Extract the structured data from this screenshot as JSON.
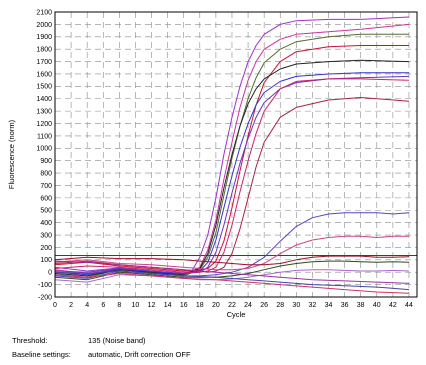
{
  "info": {
    "threshold_label": "Threshold:",
    "threshold_value": "135 (Noise band)",
    "baseline_label": "Baseline settings:",
    "baseline_value": "automatic, Drift correction OFF"
  },
  "chart_data": {
    "type": "line",
    "title": "",
    "xlabel": "Cycle",
    "ylabel": "Fluorescence (norm)",
    "xlim": [
      0,
      45
    ],
    "ylim": [
      -200,
      2100
    ],
    "x_ticks": [
      0,
      2,
      4,
      6,
      8,
      10,
      12,
      14,
      16,
      18,
      20,
      22,
      24,
      26,
      28,
      30,
      32,
      34,
      36,
      38,
      40,
      42,
      44
    ],
    "y_ticks": [
      -200,
      -100,
      0,
      100,
      200,
      300,
      400,
      500,
      600,
      700,
      800,
      900,
      1000,
      1100,
      1200,
      1300,
      1400,
      1500,
      1600,
      1700,
      1800,
      1900,
      2000,
      2100
    ],
    "grid": true,
    "legend": "none",
    "threshold": 135,
    "series": [
      {
        "color": "#9933cc",
        "values": [
          [
            0,
            40
          ],
          [
            4,
            10
          ],
          [
            8,
            35
          ],
          [
            12,
            10
          ],
          [
            16,
            -10
          ],
          [
            17,
            10
          ],
          [
            18,
            120
          ],
          [
            19,
            300
          ],
          [
            20,
            600
          ],
          [
            21,
            950
          ],
          [
            22,
            1250
          ],
          [
            23,
            1500
          ],
          [
            24,
            1700
          ],
          [
            25,
            1830
          ],
          [
            26,
            1920
          ],
          [
            28,
            2000
          ],
          [
            30,
            2030
          ],
          [
            34,
            2040
          ],
          [
            38,
            2040
          ],
          [
            44,
            2060
          ]
        ]
      },
      {
        "color": "#cc3399",
        "values": [
          [
            0,
            20
          ],
          [
            4,
            -10
          ],
          [
            8,
            25
          ],
          [
            12,
            5
          ],
          [
            16,
            -20
          ],
          [
            18,
            40
          ],
          [
            19,
            180
          ],
          [
            20,
            420
          ],
          [
            21,
            750
          ],
          [
            22,
            1050
          ],
          [
            23,
            1330
          ],
          [
            24,
            1550
          ],
          [
            25,
            1700
          ],
          [
            26,
            1800
          ],
          [
            28,
            1880
          ],
          [
            30,
            1920
          ],
          [
            34,
            1940
          ],
          [
            38,
            1960
          ],
          [
            44,
            2000
          ]
        ]
      },
      {
        "color": "#556b2f",
        "values": [
          [
            0,
            -20
          ],
          [
            4,
            -40
          ],
          [
            8,
            20
          ],
          [
            12,
            -5
          ],
          [
            16,
            -30
          ],
          [
            18,
            20
          ],
          [
            19,
            120
          ],
          [
            20,
            320
          ],
          [
            21,
            620
          ],
          [
            22,
            920
          ],
          [
            23,
            1180
          ],
          [
            24,
            1400
          ],
          [
            25,
            1570
          ],
          [
            26,
            1690
          ],
          [
            28,
            1800
          ],
          [
            30,
            1860
          ],
          [
            34,
            1900
          ],
          [
            38,
            1920
          ],
          [
            44,
            1920
          ]
        ]
      },
      {
        "color": "#cc1133",
        "values": [
          [
            0,
            60
          ],
          [
            4,
            80
          ],
          [
            8,
            50
          ],
          [
            12,
            30
          ],
          [
            16,
            10
          ],
          [
            18,
            15
          ],
          [
            19,
            30
          ],
          [
            20,
            90
          ],
          [
            21,
            250
          ],
          [
            22,
            520
          ],
          [
            23,
            820
          ],
          [
            24,
            1100
          ],
          [
            25,
            1350
          ],
          [
            26,
            1530
          ],
          [
            28,
            1700
          ],
          [
            30,
            1780
          ],
          [
            34,
            1820
          ],
          [
            38,
            1830
          ],
          [
            44,
            1830
          ]
        ]
      },
      {
        "color": "#222222",
        "values": [
          [
            0,
            -10
          ],
          [
            4,
            -30
          ],
          [
            8,
            20
          ],
          [
            12,
            0
          ],
          [
            16,
            -20
          ],
          [
            18,
            30
          ],
          [
            19,
            150
          ],
          [
            20,
            380
          ],
          [
            21,
            680
          ],
          [
            22,
            950
          ],
          [
            23,
            1180
          ],
          [
            24,
            1360
          ],
          [
            25,
            1480
          ],
          [
            26,
            1560
          ],
          [
            28,
            1640
          ],
          [
            30,
            1680
          ],
          [
            34,
            1700
          ],
          [
            38,
            1710
          ],
          [
            44,
            1700
          ]
        ]
      },
      {
        "color": "#3333cc",
        "values": [
          [
            0,
            0
          ],
          [
            4,
            -20
          ],
          [
            8,
            25
          ],
          [
            12,
            5
          ],
          [
            16,
            -15
          ],
          [
            18,
            10
          ],
          [
            19,
            80
          ],
          [
            20,
            260
          ],
          [
            21,
            520
          ],
          [
            22,
            780
          ],
          [
            23,
            1010
          ],
          [
            24,
            1200
          ],
          [
            25,
            1350
          ],
          [
            26,
            1450
          ],
          [
            28,
            1540
          ],
          [
            30,
            1580
          ],
          [
            34,
            1600
          ],
          [
            38,
            1610
          ],
          [
            44,
            1610
          ]
        ]
      },
      {
        "color": "#6633cc",
        "values": [
          [
            0,
            10
          ],
          [
            4,
            0
          ],
          [
            8,
            30
          ],
          [
            12,
            10
          ],
          [
            16,
            -10
          ],
          [
            18,
            0
          ],
          [
            19,
            40
          ],
          [
            20,
            160
          ],
          [
            21,
            380
          ],
          [
            22,
            640
          ],
          [
            23,
            880
          ],
          [
            24,
            1080
          ],
          [
            25,
            1250
          ],
          [
            26,
            1370
          ],
          [
            28,
            1480
          ],
          [
            30,
            1530
          ],
          [
            34,
            1560
          ],
          [
            38,
            1570
          ],
          [
            44,
            1580
          ]
        ]
      },
      {
        "color": "#cc2266",
        "values": [
          [
            0,
            30
          ],
          [
            4,
            50
          ],
          [
            8,
            40
          ],
          [
            12,
            20
          ],
          [
            16,
            0
          ],
          [
            18,
            0
          ],
          [
            19,
            10
          ],
          [
            20,
            40
          ],
          [
            21,
            160
          ],
          [
            22,
            380
          ],
          [
            23,
            650
          ],
          [
            24,
            900
          ],
          [
            25,
            1120
          ],
          [
            26,
            1300
          ],
          [
            28,
            1480
          ],
          [
            30,
            1540
          ],
          [
            34,
            1560
          ],
          [
            38,
            1560
          ],
          [
            44,
            1550
          ]
        ]
      },
      {
        "color": "#aa2244",
        "values": [
          [
            0,
            70
          ],
          [
            4,
            90
          ],
          [
            8,
            60
          ],
          [
            12,
            40
          ],
          [
            16,
            20
          ],
          [
            18,
            10
          ],
          [
            19,
            0
          ],
          [
            20,
            10
          ],
          [
            21,
            40
          ],
          [
            22,
            150
          ],
          [
            23,
            350
          ],
          [
            24,
            600
          ],
          [
            25,
            850
          ],
          [
            26,
            1050
          ],
          [
            28,
            1250
          ],
          [
            30,
            1330
          ],
          [
            34,
            1390
          ],
          [
            38,
            1410
          ],
          [
            44,
            1380
          ]
        ]
      },
      {
        "color": "#5544cc",
        "values": [
          [
            0,
            -30
          ],
          [
            4,
            -50
          ],
          [
            8,
            10
          ],
          [
            12,
            -10
          ],
          [
            16,
            -30
          ],
          [
            18,
            -30
          ],
          [
            20,
            -20
          ],
          [
            22,
            0
          ],
          [
            24,
            40
          ],
          [
            26,
            120
          ],
          [
            28,
            250
          ],
          [
            30,
            370
          ],
          [
            32,
            440
          ],
          [
            34,
            470
          ],
          [
            36,
            480
          ],
          [
            38,
            480
          ],
          [
            40,
            480
          ],
          [
            42,
            470
          ],
          [
            44,
            480
          ]
        ]
      },
      {
        "color": "#cc4488",
        "values": [
          [
            0,
            80
          ],
          [
            4,
            100
          ],
          [
            8,
            70
          ],
          [
            12,
            60
          ],
          [
            16,
            40
          ],
          [
            18,
            30
          ],
          [
            20,
            20
          ],
          [
            22,
            20
          ],
          [
            24,
            30
          ],
          [
            26,
            70
          ],
          [
            28,
            150
          ],
          [
            30,
            220
          ],
          [
            32,
            260
          ],
          [
            34,
            280
          ],
          [
            36,
            290
          ],
          [
            38,
            290
          ],
          [
            40,
            280
          ],
          [
            42,
            290
          ],
          [
            44,
            290
          ]
        ]
      },
      {
        "color": "#991122",
        "values": [
          [
            0,
            100
          ],
          [
            4,
            120
          ],
          [
            8,
            110
          ],
          [
            12,
            110
          ],
          [
            16,
            100
          ],
          [
            18,
            90
          ],
          [
            20,
            80
          ],
          [
            22,
            70
          ],
          [
            24,
            60
          ],
          [
            26,
            60
          ],
          [
            28,
            70
          ],
          [
            30,
            100
          ],
          [
            32,
            120
          ],
          [
            34,
            130
          ],
          [
            36,
            130
          ],
          [
            38,
            130
          ],
          [
            40,
            120
          ],
          [
            42,
            120
          ],
          [
            44,
            125
          ]
        ]
      },
      {
        "color": "#334422",
        "values": [
          [
            0,
            -40
          ],
          [
            4,
            -60
          ],
          [
            8,
            0
          ],
          [
            12,
            -20
          ],
          [
            16,
            -40
          ],
          [
            18,
            -40
          ],
          [
            20,
            -40
          ],
          [
            22,
            -30
          ],
          [
            24,
            -10
          ],
          [
            26,
            20
          ],
          [
            28,
            50
          ],
          [
            30,
            70
          ],
          [
            32,
            85
          ],
          [
            34,
            90
          ],
          [
            36,
            90
          ],
          [
            38,
            85
          ],
          [
            40,
            80
          ],
          [
            42,
            85
          ],
          [
            44,
            80
          ]
        ]
      },
      {
        "color": "#aa66cc",
        "values": [
          [
            0,
            -60
          ],
          [
            4,
            -80
          ],
          [
            8,
            -20
          ],
          [
            12,
            -30
          ],
          [
            16,
            -50
          ],
          [
            18,
            -60
          ],
          [
            20,
            -60
          ],
          [
            22,
            -55
          ],
          [
            24,
            -40
          ],
          [
            26,
            -20
          ],
          [
            28,
            0
          ],
          [
            30,
            15
          ],
          [
            32,
            20
          ],
          [
            34,
            20
          ],
          [
            36,
            15
          ],
          [
            38,
            10
          ],
          [
            40,
            10
          ],
          [
            42,
            15
          ],
          [
            44,
            10
          ]
        ]
      },
      {
        "color": "#4444aa",
        "values": [
          [
            0,
            0
          ],
          [
            4,
            -10
          ],
          [
            8,
            10
          ],
          [
            12,
            -10
          ],
          [
            16,
            -30
          ],
          [
            20,
            -40
          ],
          [
            24,
            -60
          ],
          [
            28,
            -80
          ],
          [
            32,
            -100
          ],
          [
            36,
            -110
          ],
          [
            40,
            -120
          ],
          [
            44,
            -140
          ]
        ]
      },
      {
        "color": "#cc3366",
        "values": [
          [
            0,
            -20
          ],
          [
            4,
            -40
          ],
          [
            8,
            -10
          ],
          [
            12,
            -30
          ],
          [
            16,
            -50
          ],
          [
            20,
            -60
          ],
          [
            24,
            -80
          ],
          [
            28,
            -100
          ],
          [
            32,
            -120
          ],
          [
            36,
            -140
          ],
          [
            40,
            -160
          ],
          [
            44,
            -170
          ]
        ]
      },
      {
        "color": "#993399",
        "values": [
          [
            0,
            90
          ],
          [
            4,
            80
          ],
          [
            8,
            60
          ],
          [
            12,
            40
          ],
          [
            16,
            20
          ],
          [
            20,
            0
          ],
          [
            24,
            -20
          ],
          [
            28,
            -40
          ],
          [
            32,
            -60
          ],
          [
            36,
            -70
          ],
          [
            40,
            -80
          ],
          [
            44,
            -90
          ]
        ]
      }
    ]
  }
}
